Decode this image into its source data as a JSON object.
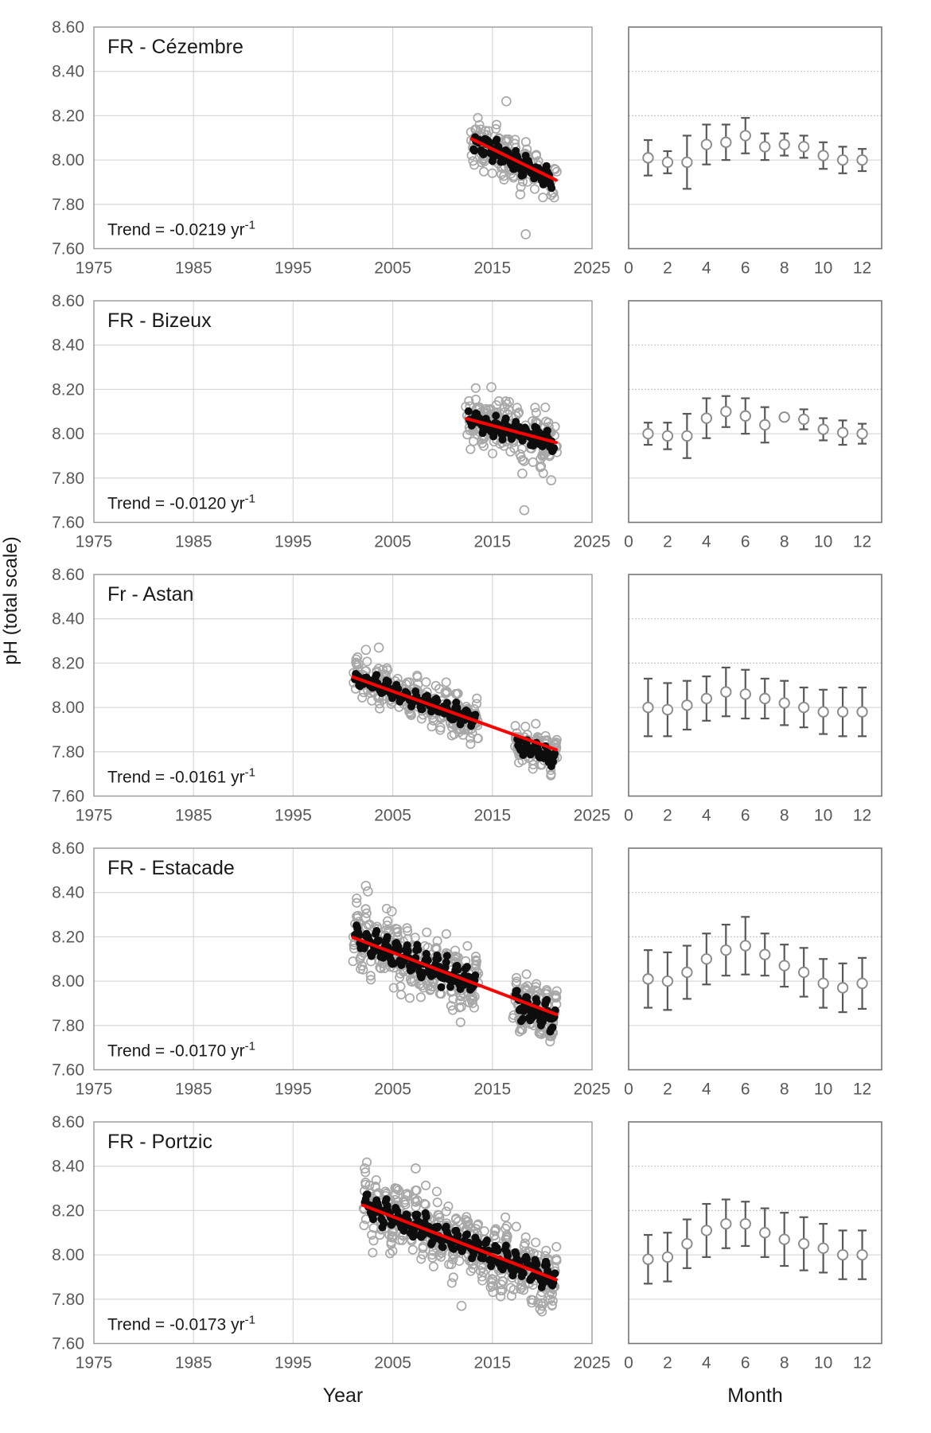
{
  "labels": {
    "y_axis": "pH (total scale)",
    "x_axis_left": "Year",
    "x_axis_right": "Month"
  },
  "axes": {
    "y_ticks": [
      "8.60",
      "8.40",
      "8.20",
      "8.00",
      "7.80",
      "7.60"
    ],
    "y_tick_values": [
      8.6,
      8.4,
      8.2,
      8.0,
      7.8,
      7.6
    ],
    "x_ticks_years": [
      "1975",
      "1985",
      "1995",
      "2005",
      "2015",
      "2025"
    ],
    "x_tick_year_values": [
      1975,
      1985,
      1995,
      2005,
      2015,
      2025
    ],
    "x_ticks_months": [
      "0",
      "2",
      "4",
      "6",
      "8",
      "10",
      "12"
    ],
    "x_tick_month_values": [
      0,
      2,
      4,
      6,
      8,
      10,
      12
    ],
    "x_range_years": [
      1975,
      2025
    ],
    "x_range_months": [
      0,
      13
    ],
    "y_range": [
      7.6,
      8.6
    ],
    "grid_levels": [
      8.4,
      8.2,
      8.0,
      7.8
    ]
  },
  "colors": {
    "trend_red": "#ff0000",
    "gray_point": "#a8a8a8",
    "black_point": "#0d0d0d",
    "grid": "#d9d9d9",
    "grid_dashed": "#c9c9c9",
    "left_border": "#9a9a9a",
    "right_border": "#767676",
    "tick_text": "#595959",
    "title_text": "#1a1a1a",
    "clim_marker": "#595959",
    "clim_circle": "#8c8c8c"
  },
  "chart_data": [
    {
      "site": "FR - Cézembre",
      "trend_label_base": "Trend = -0.0219 yr",
      "trend_superscript": "-1",
      "trend_per_year": -0.0219,
      "seed": 11,
      "timeseries": {
        "type": "scatter",
        "trend_line": {
          "x": [
            2012.9,
            2021.4
          ],
          "y": [
            8.095,
            7.909
          ]
        },
        "gray_cloud": [
          {
            "from": 2012.8,
            "to": 2021.5,
            "n": 155,
            "sd": 0.042,
            "offset": 0
          }
        ],
        "black_series": [
          {
            "from": 2013.1,
            "to": 2021.0,
            "offset": -0.005
          }
        ],
        "outliers": [
          [
            2016.4,
            8.265
          ],
          [
            2017.8,
            7.845
          ],
          [
            2018.35,
            7.665
          ]
        ]
      },
      "climatology": {
        "type": "errorbar",
        "months": [
          1,
          2,
          3,
          4,
          5,
          6,
          7,
          8,
          9,
          10,
          11,
          12
        ],
        "mean": [
          8.01,
          7.99,
          7.99,
          8.07,
          8.08,
          8.11,
          8.06,
          8.07,
          8.06,
          8.02,
          8.0,
          8.0
        ],
        "err": [
          0.08,
          0.05,
          0.12,
          0.09,
          0.08,
          0.08,
          0.06,
          0.05,
          0.05,
          0.06,
          0.06,
          0.05
        ]
      }
    },
    {
      "site": "FR - Bizeux",
      "trend_label_base": "Trend = -0.0120 yr",
      "trend_superscript": "-1",
      "trend_per_year": -0.012,
      "seed": 22,
      "timeseries": {
        "type": "scatter",
        "trend_line": {
          "x": [
            2012.4,
            2021.4
          ],
          "y": [
            8.068,
            7.96
          ]
        },
        "gray_cloud": [
          {
            "from": 2012.3,
            "to": 2021.5,
            "n": 185,
            "sd": 0.048,
            "offset": 0
          }
        ],
        "black_series": [
          {
            "from": 2012.6,
            "to": 2021.2,
            "offset": 0
          }
        ],
        "outliers": [
          [
            2018.2,
            7.655
          ],
          [
            2020.9,
            7.79
          ],
          [
            2018.0,
            7.82
          ],
          [
            2014.9,
            8.21
          ]
        ]
      },
      "climatology": {
        "type": "errorbar",
        "months": [
          1,
          2,
          3,
          4,
          5,
          6,
          7,
          8,
          9,
          10,
          11,
          12
        ],
        "mean": [
          8.0,
          7.99,
          7.99,
          8.07,
          8.1,
          8.08,
          8.04,
          8.075,
          8.065,
          8.02,
          8.005,
          8.0
        ],
        "err": [
          0.05,
          0.06,
          0.1,
          0.09,
          0.07,
          0.08,
          0.08,
          0.012,
          0.045,
          0.05,
          0.055,
          0.045
        ]
      }
    },
    {
      "site": "Fr - Astan",
      "trend_label_base": "Trend = -0.0161 yr",
      "trend_superscript": "-1",
      "trend_per_year": -0.0161,
      "seed": 33,
      "timeseries": {
        "type": "scatter",
        "trend_line": {
          "x": [
            2001.0,
            2021.4
          ],
          "y": [
            8.137,
            7.809
          ]
        },
        "gray_cloud": [
          {
            "from": 2001.0,
            "to": 2013.6,
            "n": 250,
            "sd": 0.038,
            "offset": 0
          },
          {
            "from": 2017.2,
            "to": 2021.5,
            "n": 105,
            "sd": 0.028,
            "offset": -0.035
          }
        ],
        "black_series": [
          {
            "from": 2001.2,
            "to": 2013.3,
            "offset": 0
          },
          {
            "from": 2017.5,
            "to": 2021.3,
            "offset": -0.035
          }
        ],
        "outliers": [
          [
            2002.3,
            8.26
          ],
          [
            2003.6,
            8.27
          ],
          [
            2012.9,
            7.905
          ],
          [
            2013.4,
            7.93
          ]
        ]
      },
      "climatology": {
        "type": "errorbar",
        "months": [
          1,
          2,
          3,
          4,
          5,
          6,
          7,
          8,
          9,
          10,
          11,
          12
        ],
        "mean": [
          8.0,
          7.99,
          8.01,
          8.04,
          8.07,
          8.06,
          8.04,
          8.02,
          8.0,
          7.98,
          7.98,
          7.98
        ],
        "err": [
          0.13,
          0.12,
          0.11,
          0.1,
          0.11,
          0.11,
          0.09,
          0.1,
          0.09,
          0.1,
          0.11,
          0.11
        ]
      }
    },
    {
      "site": "FR - Estacade",
      "trend_label_base": "Trend = -0.0170 yr",
      "trend_superscript": "-1",
      "trend_per_year": -0.017,
      "seed": 44,
      "timeseries": {
        "type": "scatter",
        "trend_line": {
          "x": [
            2001.0,
            2021.4
          ],
          "y": [
            8.197,
            7.85
          ]
        },
        "gray_cloud": [
          {
            "from": 2001.0,
            "to": 2013.6,
            "n": 265,
            "sd": 0.05,
            "offset": 0
          },
          {
            "from": 2017.0,
            "to": 2021.5,
            "n": 115,
            "sd": 0.032,
            "offset": -0.02
          }
        ],
        "black_series": [
          {
            "from": 2001.2,
            "to": 2013.3,
            "offset": 0
          },
          {
            "from": 2017.3,
            "to": 2021.3,
            "offset": -0.02
          }
        ],
        "outliers": [
          [
            2002.3,
            8.43
          ],
          [
            2002.5,
            8.405
          ],
          [
            2004.9,
            8.315
          ],
          [
            2012.6,
            7.95
          ],
          [
            2013.2,
            7.93
          ]
        ]
      },
      "climatology": {
        "type": "errorbar",
        "months": [
          1,
          2,
          3,
          4,
          5,
          6,
          7,
          8,
          9,
          10,
          11,
          12
        ],
        "mean": [
          8.01,
          8.0,
          8.04,
          8.1,
          8.14,
          8.16,
          8.12,
          8.07,
          8.04,
          7.99,
          7.97,
          7.99
        ],
        "err": [
          0.13,
          0.13,
          0.12,
          0.115,
          0.115,
          0.13,
          0.095,
          0.095,
          0.11,
          0.11,
          0.11,
          0.115
        ]
      }
    },
    {
      "site": "FR - Portzic",
      "trend_label_base": "Trend = -0.0173 yr",
      "trend_superscript": "-1",
      "trend_per_year": -0.0173,
      "seed": 55,
      "timeseries": {
        "type": "scatter",
        "trend_line": {
          "x": [
            2002.0,
            2021.4
          ],
          "y": [
            8.224,
            7.888
          ]
        },
        "gray_cloud": [
          {
            "from": 2002.0,
            "to": 2021.5,
            "n": 470,
            "sd": 0.052,
            "offset": 0
          }
        ],
        "black_series": [
          {
            "from": 2002.2,
            "to": 2021.3,
            "offset": 0
          }
        ],
        "outliers": [
          [
            2002.2,
            8.39
          ],
          [
            2007.3,
            8.39
          ],
          [
            2011.9,
            7.77
          ],
          [
            2019.8,
            7.755
          ]
        ]
      },
      "climatology": {
        "type": "errorbar",
        "months": [
          1,
          2,
          3,
          4,
          5,
          6,
          7,
          8,
          9,
          10,
          11,
          12
        ],
        "mean": [
          7.98,
          7.99,
          8.05,
          8.11,
          8.14,
          8.14,
          8.1,
          8.07,
          8.05,
          8.03,
          8.0,
          8.0
        ],
        "err": [
          0.11,
          0.11,
          0.11,
          0.12,
          0.11,
          0.1,
          0.11,
          0.12,
          0.12,
          0.11,
          0.11,
          0.11
        ]
      }
    }
  ]
}
